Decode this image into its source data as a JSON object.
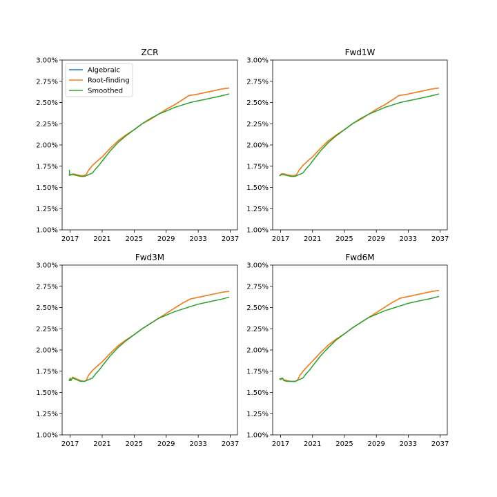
{
  "figure": {
    "colors": {
      "Algebraic": "#1f77b4",
      "Root-finding": "#ff7f0e",
      "Smoothed": "#2ca02c"
    },
    "legend_location": "upper-left of first panel"
  },
  "chart_data": [
    {
      "type": "line",
      "title": "ZCR",
      "xlabel": "",
      "ylabel": "",
      "xlim": [
        2016.0,
        2037.9
      ],
      "ylim": [
        1.0,
        3.0
      ],
      "xticks": [
        "2017",
        "2021",
        "2025",
        "2029",
        "2033",
        "2037"
      ],
      "yticks": [
        "1.00%",
        "1.25%",
        "1.50%",
        "1.75%",
        "2.00%",
        "2.25%",
        "2.50%",
        "2.75%",
        "3.00%"
      ],
      "grid": false,
      "legend": [
        "Algebraic",
        "Root-finding",
        "Smoothed"
      ],
      "series": [
        {
          "name": "Algebraic",
          "x": [
            2016.9,
            2017.1,
            2017.4,
            2017.8,
            2018.3,
            2018.7,
            2019.0,
            2019.3,
            2019.8,
            2020.5,
            2021.0,
            2022.0,
            2023.0,
            2024.0,
            2025.0,
            2026.0,
            2027.0,
            2028.0,
            2029.0,
            2030.0,
            2031.0,
            2031.8,
            2033.0,
            2034.0,
            2035.0,
            2036.0,
            2036.8
          ],
          "y": [
            1.65,
            1.65,
            1.66,
            1.65,
            1.64,
            1.64,
            1.65,
            1.7,
            1.76,
            1.82,
            1.86,
            1.96,
            2.05,
            2.12,
            2.18,
            2.25,
            2.3,
            2.36,
            2.42,
            2.47,
            2.53,
            2.58,
            2.6,
            2.62,
            2.64,
            2.66,
            2.67
          ]
        },
        {
          "name": "Root-finding",
          "x": [
            2016.9,
            2017.1,
            2017.4,
            2017.8,
            2018.3,
            2018.7,
            2019.0,
            2019.3,
            2019.8,
            2020.5,
            2021.0,
            2022.0,
            2023.0,
            2024.0,
            2025.0,
            2026.0,
            2027.0,
            2028.0,
            2029.0,
            2030.0,
            2031.0,
            2031.8,
            2033.0,
            2034.0,
            2035.0,
            2036.0,
            2036.8
          ],
          "y": [
            1.65,
            1.65,
            1.66,
            1.65,
            1.64,
            1.64,
            1.65,
            1.7,
            1.76,
            1.82,
            1.86,
            1.96,
            2.05,
            2.12,
            2.18,
            2.25,
            2.3,
            2.36,
            2.42,
            2.47,
            2.53,
            2.58,
            2.6,
            2.62,
            2.64,
            2.66,
            2.67
          ]
        },
        {
          "name": "Smoothed",
          "x": [
            2016.9,
            2016.95,
            2017.1,
            2017.4,
            2017.8,
            2018.3,
            2018.8,
            2019.3,
            2019.8,
            2020.2,
            2020.6,
            2021.0,
            2022.0,
            2023.0,
            2024.0,
            2025.0,
            2026.0,
            2027.0,
            2028.0,
            2029.0,
            2030.0,
            2031.0,
            2032.0,
            2033.0,
            2034.0,
            2035.0,
            2036.0,
            2036.8
          ],
          "y": [
            1.7,
            1.64,
            1.65,
            1.65,
            1.64,
            1.63,
            1.63,
            1.65,
            1.67,
            1.72,
            1.76,
            1.81,
            1.93,
            2.03,
            2.11,
            2.18,
            2.25,
            2.31,
            2.36,
            2.4,
            2.44,
            2.47,
            2.5,
            2.52,
            2.54,
            2.56,
            2.58,
            2.6
          ]
        }
      ]
    },
    {
      "type": "line",
      "title": "Fwd1W",
      "xlabel": "",
      "ylabel": "",
      "xlim": [
        2016.0,
        2037.9
      ],
      "ylim": [
        1.0,
        3.0
      ],
      "xticks": [
        "2017",
        "2021",
        "2025",
        "2029",
        "2033",
        "2037"
      ],
      "yticks": [
        "1.00%",
        "1.25%",
        "1.50%",
        "1.75%",
        "2.00%",
        "2.25%",
        "2.50%",
        "2.75%",
        "3.00%"
      ],
      "grid": false,
      "series": [
        {
          "name": "Algebraic",
          "x": [
            2016.9,
            2017.1,
            2017.4,
            2017.8,
            2018.3,
            2018.7,
            2019.0,
            2019.3,
            2019.8,
            2020.5,
            2021.0,
            2022.0,
            2023.0,
            2024.0,
            2025.0,
            2026.0,
            2027.0,
            2028.0,
            2029.0,
            2030.0,
            2031.0,
            2031.8,
            2033.0,
            2034.0,
            2035.0,
            2036.0,
            2036.8
          ],
          "y": [
            1.64,
            1.66,
            1.66,
            1.65,
            1.64,
            1.64,
            1.65,
            1.7,
            1.76,
            1.82,
            1.86,
            1.96,
            2.05,
            2.12,
            2.18,
            2.25,
            2.3,
            2.36,
            2.42,
            2.47,
            2.53,
            2.58,
            2.6,
            2.62,
            2.64,
            2.66,
            2.67
          ]
        },
        {
          "name": "Root-finding",
          "x": [
            2016.9,
            2017.1,
            2017.4,
            2017.8,
            2018.3,
            2018.7,
            2019.0,
            2019.3,
            2019.8,
            2020.5,
            2021.0,
            2022.0,
            2023.0,
            2024.0,
            2025.0,
            2026.0,
            2027.0,
            2028.0,
            2029.0,
            2030.0,
            2031.0,
            2031.8,
            2033.0,
            2034.0,
            2035.0,
            2036.0,
            2036.8
          ],
          "y": [
            1.64,
            1.66,
            1.66,
            1.65,
            1.64,
            1.64,
            1.65,
            1.7,
            1.76,
            1.82,
            1.86,
            1.96,
            2.05,
            2.12,
            2.18,
            2.25,
            2.3,
            2.36,
            2.42,
            2.47,
            2.53,
            2.58,
            2.6,
            2.62,
            2.64,
            2.66,
            2.67
          ]
        },
        {
          "name": "Smoothed",
          "x": [
            2016.9,
            2017.1,
            2017.4,
            2017.8,
            2018.3,
            2018.8,
            2019.3,
            2019.8,
            2020.2,
            2020.6,
            2021.0,
            2022.0,
            2023.0,
            2024.0,
            2025.0,
            2026.0,
            2027.0,
            2028.0,
            2029.0,
            2030.0,
            2031.0,
            2032.0,
            2033.0,
            2034.0,
            2035.0,
            2036.0,
            2036.8
          ],
          "y": [
            1.64,
            1.65,
            1.65,
            1.64,
            1.63,
            1.63,
            1.65,
            1.67,
            1.72,
            1.76,
            1.81,
            1.93,
            2.03,
            2.11,
            2.18,
            2.25,
            2.31,
            2.36,
            2.4,
            2.44,
            2.47,
            2.5,
            2.52,
            2.54,
            2.56,
            2.58,
            2.6
          ]
        }
      ]
    },
    {
      "type": "line",
      "title": "Fwd3M",
      "xlabel": "",
      "ylabel": "",
      "xlim": [
        2016.0,
        2037.9
      ],
      "ylim": [
        1.0,
        3.0
      ],
      "xticks": [
        "2017",
        "2021",
        "2025",
        "2029",
        "2033",
        "2037"
      ],
      "yticks": [
        "1.00%",
        "1.25%",
        "1.50%",
        "1.75%",
        "2.00%",
        "2.25%",
        "2.50%",
        "2.75%",
        "3.00%"
      ],
      "grid": false,
      "series": [
        {
          "name": "Algebraic",
          "x": [
            2016.9,
            2017.0,
            2017.1,
            2017.3,
            2017.8,
            2018.3,
            2018.7,
            2019.0,
            2019.3,
            2019.8,
            2020.5,
            2021.0,
            2022.0,
            2023.0,
            2024.0,
            2025.0,
            2026.0,
            2027.0,
            2028.0,
            2029.0,
            2030.0,
            2031.0,
            2032.0,
            2033.0,
            2034.0,
            2035.0,
            2036.0,
            2036.8
          ],
          "y": [
            1.64,
            1.67,
            1.64,
            1.68,
            1.66,
            1.64,
            1.63,
            1.64,
            1.7,
            1.76,
            1.82,
            1.86,
            1.96,
            2.05,
            2.12,
            2.18,
            2.25,
            2.31,
            2.37,
            2.43,
            2.49,
            2.55,
            2.6,
            2.62,
            2.64,
            2.66,
            2.68,
            2.69
          ]
        },
        {
          "name": "Root-finding",
          "x": [
            2016.9,
            2017.0,
            2017.1,
            2017.3,
            2017.8,
            2018.3,
            2018.7,
            2019.0,
            2019.3,
            2019.8,
            2020.5,
            2021.0,
            2022.0,
            2023.0,
            2024.0,
            2025.0,
            2026.0,
            2027.0,
            2028.0,
            2029.0,
            2030.0,
            2031.0,
            2032.0,
            2033.0,
            2034.0,
            2035.0,
            2036.0,
            2036.8
          ],
          "y": [
            1.64,
            1.67,
            1.64,
            1.68,
            1.66,
            1.64,
            1.63,
            1.64,
            1.7,
            1.76,
            1.82,
            1.86,
            1.96,
            2.05,
            2.12,
            2.18,
            2.25,
            2.31,
            2.37,
            2.43,
            2.49,
            2.55,
            2.6,
            2.62,
            2.64,
            2.66,
            2.68,
            2.69
          ]
        },
        {
          "name": "Smoothed",
          "x": [
            2016.9,
            2017.0,
            2017.1,
            2017.3,
            2017.8,
            2018.3,
            2018.8,
            2019.3,
            2019.8,
            2020.2,
            2020.6,
            2021.0,
            2022.0,
            2023.0,
            2024.0,
            2025.0,
            2026.0,
            2027.0,
            2028.0,
            2029.0,
            2030.0,
            2031.0,
            2032.0,
            2033.0,
            2034.0,
            2035.0,
            2036.0,
            2036.8
          ],
          "y": [
            1.64,
            1.66,
            1.64,
            1.67,
            1.65,
            1.63,
            1.63,
            1.65,
            1.67,
            1.72,
            1.76,
            1.81,
            1.93,
            2.03,
            2.11,
            2.18,
            2.25,
            2.31,
            2.37,
            2.41,
            2.45,
            2.48,
            2.51,
            2.54,
            2.56,
            2.58,
            2.6,
            2.62
          ]
        }
      ]
    },
    {
      "type": "line",
      "title": "Fwd6M",
      "xlabel": "",
      "ylabel": "",
      "xlim": [
        2016.0,
        2037.9
      ],
      "ylim": [
        1.0,
        3.0
      ],
      "xticks": [
        "2017",
        "2021",
        "2025",
        "2029",
        "2033",
        "2037"
      ],
      "yticks": [
        "1.00%",
        "1.25%",
        "1.50%",
        "1.75%",
        "2.00%",
        "2.25%",
        "2.50%",
        "2.75%",
        "3.00%"
      ],
      "grid": false,
      "series": [
        {
          "name": "Algebraic",
          "x": [
            2016.9,
            2017.0,
            2017.2,
            2017.4,
            2017.8,
            2018.3,
            2018.8,
            2019.1,
            2019.4,
            2019.9,
            2020.5,
            2021.0,
            2022.0,
            2023.0,
            2024.0,
            2025.0,
            2026.0,
            2027.0,
            2028.0,
            2029.0,
            2030.0,
            2031.0,
            2032.0,
            2033.0,
            2034.0,
            2035.0,
            2036.0,
            2036.8
          ],
          "y": [
            1.66,
            1.66,
            1.67,
            1.65,
            1.64,
            1.63,
            1.63,
            1.64,
            1.7,
            1.76,
            1.82,
            1.87,
            1.97,
            2.06,
            2.13,
            2.19,
            2.26,
            2.32,
            2.38,
            2.44,
            2.5,
            2.56,
            2.61,
            2.63,
            2.65,
            2.67,
            2.69,
            2.7
          ]
        },
        {
          "name": "Root-finding",
          "x": [
            2016.9,
            2017.0,
            2017.2,
            2017.4,
            2017.8,
            2018.3,
            2018.8,
            2019.1,
            2019.4,
            2019.9,
            2020.5,
            2021.0,
            2022.0,
            2023.0,
            2024.0,
            2025.0,
            2026.0,
            2027.0,
            2028.0,
            2029.0,
            2030.0,
            2031.0,
            2032.0,
            2033.0,
            2034.0,
            2035.0,
            2036.0,
            2036.8
          ],
          "y": [
            1.66,
            1.66,
            1.67,
            1.65,
            1.64,
            1.63,
            1.63,
            1.64,
            1.7,
            1.76,
            1.82,
            1.87,
            1.97,
            2.06,
            2.13,
            2.19,
            2.26,
            2.32,
            2.38,
            2.44,
            2.5,
            2.56,
            2.61,
            2.63,
            2.65,
            2.67,
            2.69,
            2.7
          ]
        },
        {
          "name": "Smoothed",
          "x": [
            2016.9,
            2017.0,
            2017.2,
            2017.4,
            2017.8,
            2018.3,
            2018.8,
            2019.3,
            2019.8,
            2020.2,
            2020.6,
            2021.0,
            2022.0,
            2023.0,
            2024.0,
            2025.0,
            2026.0,
            2027.0,
            2028.0,
            2029.0,
            2030.0,
            2031.0,
            2032.0,
            2033.0,
            2034.0,
            2035.0,
            2036.0,
            2036.8
          ],
          "y": [
            1.66,
            1.65,
            1.67,
            1.64,
            1.63,
            1.63,
            1.63,
            1.65,
            1.67,
            1.72,
            1.76,
            1.81,
            1.93,
            2.03,
            2.12,
            2.19,
            2.26,
            2.32,
            2.38,
            2.42,
            2.46,
            2.49,
            2.52,
            2.55,
            2.57,
            2.59,
            2.61,
            2.63
          ]
        }
      ]
    }
  ]
}
